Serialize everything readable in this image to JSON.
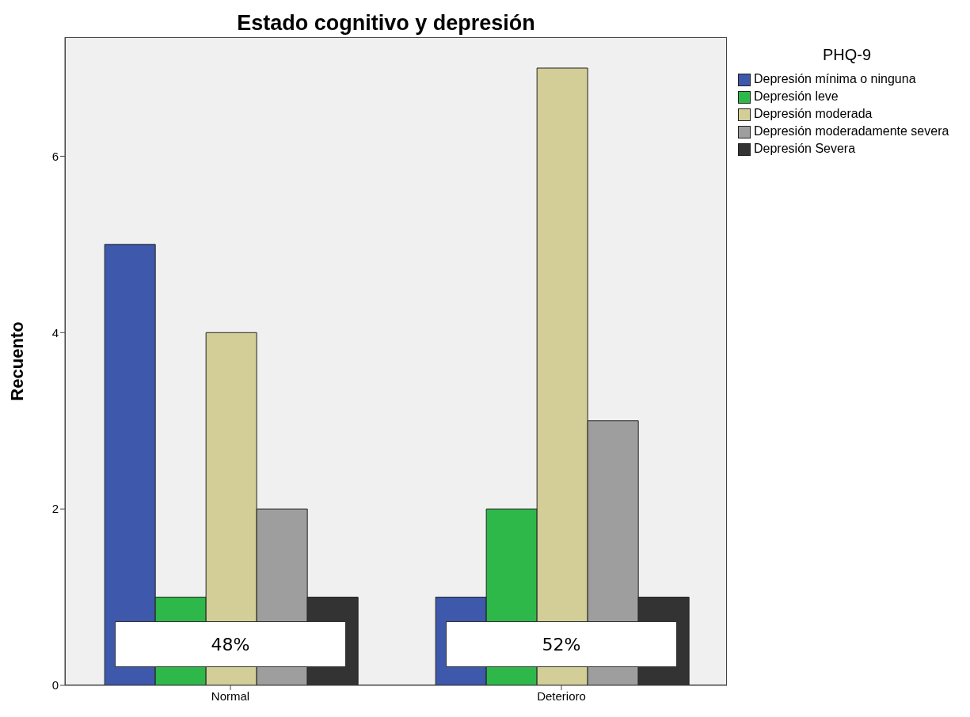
{
  "chart_data": {
    "type": "bar",
    "title": "Estado cognitivo y depresión",
    "ylabel": "Recuento",
    "legend_title": "PHQ-9",
    "categories": [
      "Normal",
      "Deterioro"
    ],
    "series": [
      {
        "name": "Depresión mínima o ninguna",
        "color": "#3e58ac",
        "values": [
          5,
          1
        ]
      },
      {
        "name": "Depresión leve",
        "color": "#2eb84a",
        "values": [
          1,
          2
        ]
      },
      {
        "name": "Depresión moderada",
        "color": "#d3ce97",
        "values": [
          4,
          7
        ]
      },
      {
        "name": "Depresión moderadamente severa",
        "color": "#9e9e9e",
        "values": [
          2,
          3
        ]
      },
      {
        "name": "Depresión Severa",
        "color": "#333333",
        "values": [
          1,
          1
        ]
      }
    ],
    "ylim": [
      0,
      7.35
    ],
    "yticks": [
      0,
      2,
      4,
      6
    ],
    "grid": false,
    "legend": "top right",
    "annotations": [
      "48%",
      "52%"
    ]
  }
}
